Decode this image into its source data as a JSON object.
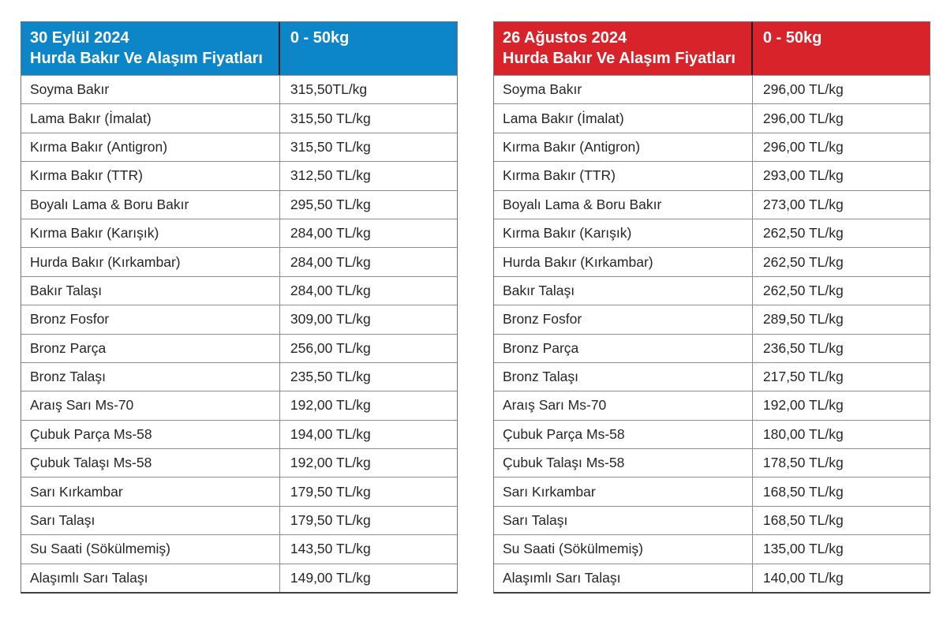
{
  "page": {
    "background_color": "#ffffff",
    "grid_line_color": "#8d8d8d",
    "row_text_color": "#262626"
  },
  "chart_data": [
    {
      "type": "table",
      "title": "30 Eylül 2024 Hurda Bakır Ve Alaşım Fiyatları",
      "accent_color": "#0d86c9",
      "header": {
        "date": "30 Eylül 2024",
        "title": "Hurda Bakır Ve Alaşım Fiyatları",
        "weight_range": "0 - 50kg"
      },
      "rows": [
        {
          "label": "Soyma Bakır",
          "price": "315,50TL/kg"
        },
        {
          "label": "Lama Bakır (İmalat)",
          "price": "315,50 TL/kg"
        },
        {
          "label": "Kırma Bakır (Antigron)",
          "price": "315,50 TL/kg"
        },
        {
          "label": "Kırma Bakır (TTR)",
          "price": "312,50 TL/kg"
        },
        {
          "label": "Boyalı Lama & Boru Bakır",
          "price": "295,50 TL/kg"
        },
        {
          "label": "Kırma Bakır (Karışık)",
          "price": "284,00 TL/kg"
        },
        {
          "label": "Hurda Bakır (Kırkambar)",
          "price": "284,00 TL/kg"
        },
        {
          "label": "Bakır Talaşı",
          "price": "284,00 TL/kg"
        },
        {
          "label": "Bronz Fosfor",
          "price": "309,00 TL/kg"
        },
        {
          "label": "Bronz Parça",
          "price": "256,00 TL/kg"
        },
        {
          "label": "Bronz Talaşı",
          "price": "235,50 TL/kg"
        },
        {
          "label": "Araış Sarı Ms-70",
          "price": "192,00 TL/kg"
        },
        {
          "label": "Çubuk Parça Ms-58",
          "price": "194,00 TL/kg"
        },
        {
          "label": "Çubuk Talaşı Ms-58",
          "price": "192,00 TL/kg"
        },
        {
          "label": "Sarı Kırkambar",
          "price": "179,50 TL/kg"
        },
        {
          "label": "Sarı Talaşı",
          "price": "179,50 TL/kg"
        },
        {
          "label": "Su Saati (Sökülmemiş)",
          "price": "143,50 TL/kg"
        },
        {
          "label": "Alaşımlı Sarı Talaşı",
          "price": "149,00 TL/kg"
        }
      ]
    },
    {
      "type": "table",
      "title": "26 Ağustos 2024 Hurda Bakır Ve Alaşım Fiyatları",
      "accent_color": "#d8232b",
      "header": {
        "date": "26 Ağustos 2024",
        "title": "Hurda Bakır Ve Alaşım Fiyatları",
        "weight_range": "0 - 50kg"
      },
      "rows": [
        {
          "label": "Soyma Bakır",
          "price": "296,00 TL/kg"
        },
        {
          "label": "Lama Bakır (İmalat)",
          "price": "296,00 TL/kg"
        },
        {
          "label": "Kırma Bakır (Antigron)",
          "price": "296,00 TL/kg"
        },
        {
          "label": "Kırma Bakır (TTR)",
          "price": "293,00 TL/kg"
        },
        {
          "label": "Boyalı Lama & Boru Bakır",
          "price": "273,00 TL/kg"
        },
        {
          "label": "Kırma Bakır (Karışık)",
          "price": "262,50 TL/kg"
        },
        {
          "label": "Hurda Bakır (Kırkambar)",
          "price": "262,50 TL/kg"
        },
        {
          "label": "Bakır Talaşı",
          "price": "262,50 TL/kg"
        },
        {
          "label": "Bronz Fosfor",
          "price": "289,50 TL/kg"
        },
        {
          "label": "Bronz Parça",
          "price": "236,50 TL/kg"
        },
        {
          "label": "Bronz Talaşı",
          "price": "217,50 TL/kg"
        },
        {
          "label": "Araış Sarı Ms-70",
          "price": "192,00 TL/kg"
        },
        {
          "label": "Çubuk Parça Ms-58",
          "price": "180,00 TL/kg"
        },
        {
          "label": "Çubuk Talaşı Ms-58",
          "price": "178,50 TL/kg"
        },
        {
          "label": "Sarı Kırkambar",
          "price": "168,50 TL/kg"
        },
        {
          "label": "Sarı Talaşı",
          "price": "168,50 TL/kg"
        },
        {
          "label": "Su Saati (Sökülmemiş)",
          "price": "135,00 TL/kg"
        },
        {
          "label": "Alaşımlı Sarı Talaşı",
          "price": "140,00 TL/kg"
        }
      ]
    }
  ]
}
